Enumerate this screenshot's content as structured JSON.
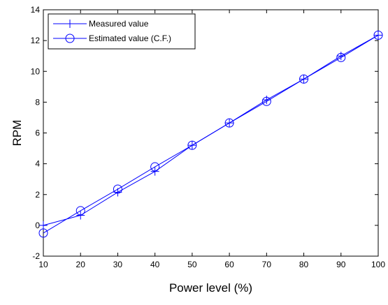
{
  "chart_data": {
    "type": "line",
    "title": "",
    "xlabel": "Power level (%)",
    "ylabel": "RPM",
    "xlim": [
      10,
      100
    ],
    "ylim": [
      -2,
      14
    ],
    "xticks": [
      10,
      20,
      30,
      40,
      50,
      60,
      70,
      80,
      90,
      100
    ],
    "yticks": [
      -2,
      0,
      2,
      4,
      6,
      8,
      10,
      12,
      14
    ],
    "grid": false,
    "legend_position": "top-left",
    "x": [
      10,
      20,
      30,
      40,
      50,
      60,
      70,
      80,
      90,
      100
    ],
    "series": [
      {
        "name": "Measured value",
        "marker": "plus",
        "color": "#0000ff",
        "values": [
          0.0,
          0.65,
          2.15,
          3.5,
          5.2,
          6.65,
          8.15,
          9.5,
          11.0,
          12.35
        ]
      },
      {
        "name": "Estimated value (C.F.)",
        "marker": "circle",
        "color": "#0000ff",
        "values": [
          -0.5,
          0.95,
          2.35,
          3.8,
          5.2,
          6.65,
          8.05,
          9.5,
          10.9,
          12.35
        ]
      }
    ]
  }
}
